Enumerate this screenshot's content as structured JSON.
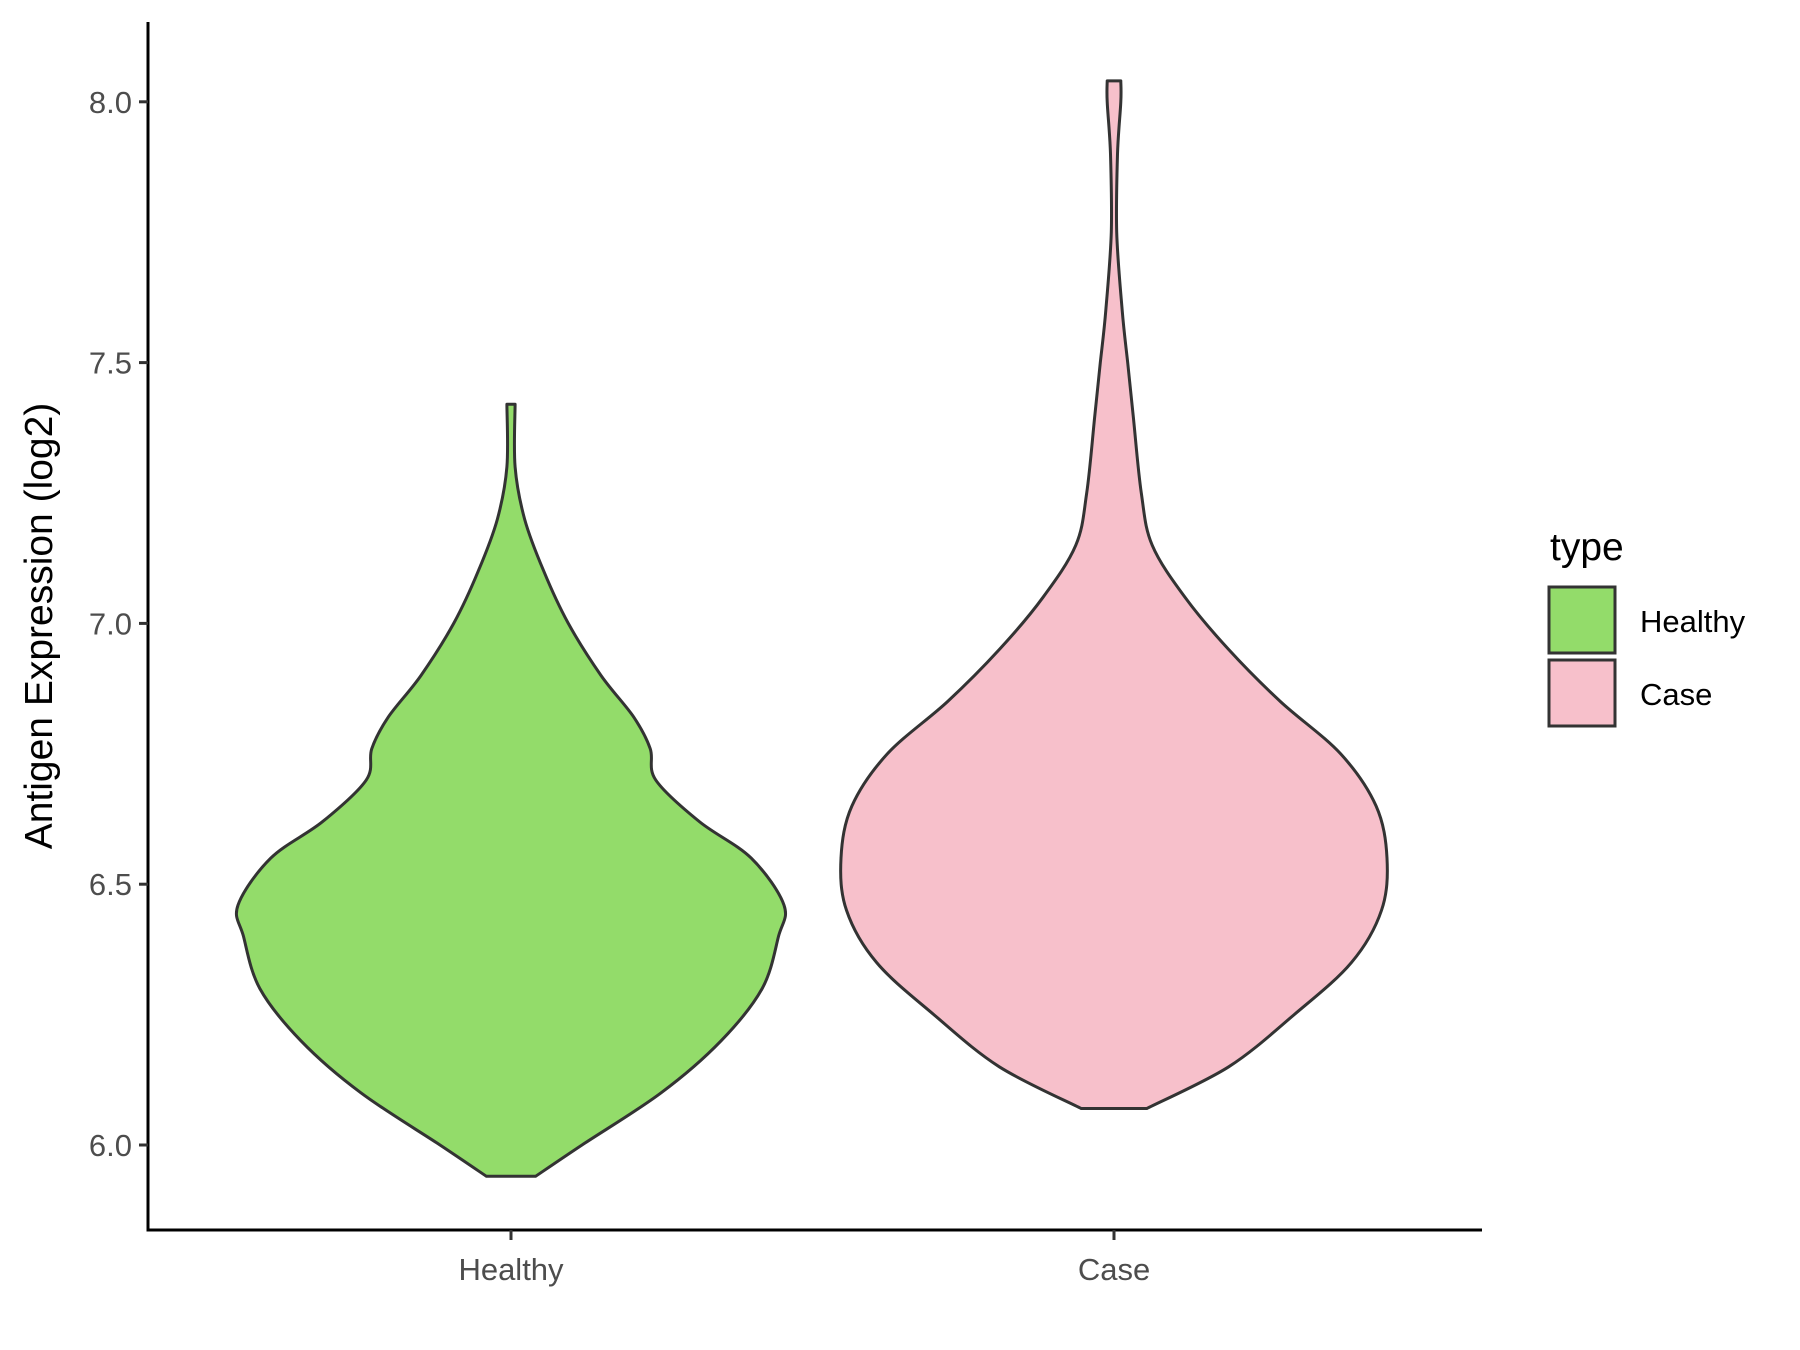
{
  "chart_data": {
    "type": "violin",
    "title": "",
    "xlabel": "",
    "ylabel": "Antigen Expression (log2)",
    "ylim": [
      5.84,
      8.15
    ],
    "yticks": [
      6.0,
      6.5,
      7.0,
      7.5,
      8.0
    ],
    "ytick_labels": [
      "6.0",
      "6.5",
      "7.0",
      "7.5",
      "8.0"
    ],
    "categories": [
      "Healthy",
      "Case"
    ],
    "grid": false,
    "legend": {
      "title": "type",
      "position": "right",
      "entries": [
        {
          "label": "Healthy",
          "color": "#93dc6a"
        },
        {
          "label": "Case",
          "color": "#f7c0cb"
        }
      ]
    },
    "series": [
      {
        "category": "Healthy",
        "color": "#93dc6a",
        "min": 5.94,
        "max": 7.42,
        "profile": [
          [
            5.94,
            0.09
          ],
          [
            6.0,
            0.26
          ],
          [
            6.1,
            0.55
          ],
          [
            6.2,
            0.77
          ],
          [
            6.3,
            0.92
          ],
          [
            6.4,
            0.98
          ],
          [
            6.46,
            1.0
          ],
          [
            6.55,
            0.88
          ],
          [
            6.62,
            0.69
          ],
          [
            6.7,
            0.53
          ],
          [
            6.76,
            0.51
          ],
          [
            6.82,
            0.45
          ],
          [
            6.9,
            0.33
          ],
          [
            7.0,
            0.21
          ],
          [
            7.1,
            0.12
          ],
          [
            7.2,
            0.05
          ],
          [
            7.3,
            0.015
          ],
          [
            7.42,
            0.015
          ]
        ]
      },
      {
        "category": "Case",
        "color": "#f7c0cb",
        "min": 6.07,
        "max": 8.04,
        "profile": [
          [
            6.07,
            0.12
          ],
          [
            6.15,
            0.42
          ],
          [
            6.25,
            0.66
          ],
          [
            6.35,
            0.87
          ],
          [
            6.45,
            0.98
          ],
          [
            6.55,
            1.0
          ],
          [
            6.65,
            0.96
          ],
          [
            6.75,
            0.83
          ],
          [
            6.85,
            0.61
          ],
          [
            6.95,
            0.42
          ],
          [
            7.05,
            0.26
          ],
          [
            7.15,
            0.14
          ],
          [
            7.25,
            0.1
          ],
          [
            7.4,
            0.07
          ],
          [
            7.5,
            0.05
          ],
          [
            7.6,
            0.03
          ],
          [
            7.75,
            0.01
          ],
          [
            7.9,
            0.013
          ],
          [
            8.0,
            0.025
          ],
          [
            8.04,
            0.025
          ]
        ]
      }
    ]
  }
}
